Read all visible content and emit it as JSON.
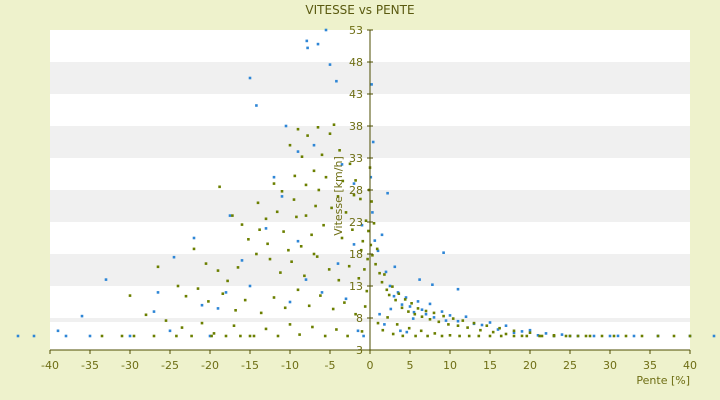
{
  "chart_data": {
    "type": "scatter",
    "title": "VITESSE vs PENTE",
    "xlabel": "Pente [%]",
    "ylabel": "Vitesse [km/h]",
    "xlim": [
      -40,
      40
    ],
    "ylim": [
      3,
      53
    ],
    "x_ticks": [
      -40,
      -35,
      -30,
      -25,
      -20,
      -15,
      -10,
      -5,
      0,
      5,
      10,
      15,
      20,
      25,
      30,
      35,
      40
    ],
    "y_ticks": [
      3,
      8,
      13,
      18,
      23,
      28,
      33,
      38,
      43,
      48,
      53
    ],
    "grid": "horizontal alternating bands",
    "legend": "none",
    "colors": {
      "background": "#eef2cc",
      "band_light": "#ffffff",
      "band_dark": "#f0f0f0",
      "series_a": "#2e86d6",
      "series_b": "#6b7f00",
      "axis": "#4d4d00"
    },
    "series": [
      {
        "color": "#2e86d6",
        "points": [
          [
            -5.5,
            53
          ],
          [
            -7.9,
            51.3
          ],
          [
            -6.5,
            50.8
          ],
          [
            -7.8,
            50.2
          ],
          [
            -5.0,
            47.6
          ],
          [
            -4.2,
            45.0
          ],
          [
            -15.0,
            45.5
          ],
          [
            -14.2,
            41.2
          ],
          [
            -9.0,
            34
          ],
          [
            -3.5,
            32
          ],
          [
            -2.0,
            29
          ],
          [
            -11.0,
            27
          ],
          [
            -17.5,
            24
          ],
          [
            -22.0,
            20.5
          ],
          [
            -24.5,
            17.5
          ],
          [
            -26.5,
            12
          ],
          [
            -33.0,
            14
          ],
          [
            -36.0,
            8.3
          ],
          [
            -39.0,
            6.0
          ],
          [
            -44.0,
            5.0
          ],
          [
            -27.0,
            9.0
          ],
          [
            -19.0,
            9.5
          ],
          [
            -15.0,
            13
          ],
          [
            -10.0,
            10.5
          ],
          [
            -8.0,
            14
          ],
          [
            -6.0,
            12
          ],
          [
            -4.0,
            16.5
          ],
          [
            -3.0,
            11.0
          ],
          [
            -2.0,
            19.5
          ],
          [
            -1.0,
            22.5
          ],
          [
            0.3,
            24.5
          ],
          [
            0.6,
            20.1
          ],
          [
            1.0,
            18.5
          ],
          [
            1.5,
            21.0
          ],
          [
            2.0,
            15.2
          ],
          [
            2.5,
            13.0
          ],
          [
            3.0,
            11.4
          ],
          [
            3.5,
            12.0
          ],
          [
            4.0,
            10.1
          ],
          [
            4.5,
            11.2
          ],
          [
            5.0,
            9.8
          ],
          [
            5.5,
            8.9
          ],
          [
            6.0,
            10.6
          ],
          [
            6.5,
            9.3
          ],
          [
            7.0,
            8.6
          ],
          [
            7.5,
            10.2
          ],
          [
            8.0,
            8.1
          ],
          [
            9.0,
            9.0
          ],
          [
            9.5,
            7.6
          ],
          [
            10.0,
            8.4
          ],
          [
            11.0,
            7.5
          ],
          [
            12.0,
            8.2
          ],
          [
            13.0,
            7.1
          ],
          [
            14.0,
            6.9
          ],
          [
            15.0,
            7.3
          ],
          [
            16.0,
            6.2
          ],
          [
            17.0,
            6.8
          ],
          [
            18.0,
            5.7
          ],
          [
            19.0,
            5.9
          ],
          [
            20.0,
            6.1
          ],
          [
            21.0,
            5.3
          ],
          [
            22.0,
            5.6
          ],
          [
            23.0,
            5.0
          ],
          [
            24.0,
            5.4
          ],
          [
            25.0,
            4.6
          ],
          [
            26.0,
            5.1
          ],
          [
            28.0,
            4.3
          ],
          [
            30.0,
            4.9
          ],
          [
            31.0,
            5.2
          ],
          [
            33.0,
            4.1
          ],
          [
            36.0,
            4.6
          ],
          [
            40.0,
            3.9
          ],
          [
            43.0,
            3.0
          ],
          [
            43.5,
            5.4
          ],
          [
            -12.0,
            30
          ],
          [
            -10.5,
            38
          ],
          [
            -7.0,
            35
          ],
          [
            -13.0,
            22
          ],
          [
            -9.0,
            20
          ],
          [
            -1.5,
            6.0
          ],
          [
            -0.8,
            4.6
          ],
          [
            0.2,
            44.5
          ],
          [
            0.4,
            35.5
          ],
          [
            0.1,
            30.0
          ],
          [
            2.2,
            27.5
          ],
          [
            3.1,
            16.0
          ],
          [
            6.2,
            14.0
          ],
          [
            7.8,
            13.2
          ],
          [
            9.2,
            18.2
          ],
          [
            11.0,
            12.5
          ],
          [
            -20.0,
            4.0
          ],
          [
            -25.0,
            6.0
          ],
          [
            -30.0,
            4.0
          ],
          [
            -35.0,
            3.0
          ],
          [
            -38.0,
            3.0
          ],
          [
            -42.0,
            3.0
          ],
          [
            -16.0,
            17.0
          ],
          [
            -18.0,
            12.0
          ],
          [
            -21.0,
            10.0
          ],
          [
            1.2,
            8.6
          ],
          [
            1.8,
            7.0
          ],
          [
            2.6,
            9.4
          ],
          [
            3.8,
            6.0
          ],
          [
            4.6,
            5.8
          ],
          [
            5.4,
            7.9
          ]
        ]
      },
      {
        "color": "#6b7f00",
        "points": [
          [
            -9.0,
            37.5
          ],
          [
            -7.8,
            36.5
          ],
          [
            -6.5,
            37.8
          ],
          [
            -5.0,
            36.8
          ],
          [
            -4.5,
            38.2
          ],
          [
            -10.0,
            35.0
          ],
          [
            -8.5,
            33.2
          ],
          [
            -7.0,
            31.0
          ],
          [
            -6.0,
            33.5
          ],
          [
            -5.5,
            30.0
          ],
          [
            -3.8,
            34.2
          ],
          [
            -2.5,
            32.1
          ],
          [
            -1.8,
            29.5
          ],
          [
            -12.0,
            29.0
          ],
          [
            -11.0,
            27.8
          ],
          [
            -9.5,
            26.5
          ],
          [
            -8.0,
            28.8
          ],
          [
            -6.8,
            25.5
          ],
          [
            -4.0,
            27.0
          ],
          [
            -3.0,
            24.5
          ],
          [
            -1.2,
            26.6
          ],
          [
            -0.5,
            23.2
          ],
          [
            -14.0,
            26.0
          ],
          [
            -13.0,
            23.5
          ],
          [
            -10.8,
            21.5
          ],
          [
            -9.2,
            23.8
          ],
          [
            -7.3,
            21.0
          ],
          [
            -5.8,
            22.5
          ],
          [
            -3.5,
            20.5
          ],
          [
            -2.2,
            21.8
          ],
          [
            -0.9,
            20.0
          ],
          [
            -18.8,
            28.5
          ],
          [
            -17.2,
            24.0
          ],
          [
            -16.0,
            22.6
          ],
          [
            -15.2,
            20.3
          ],
          [
            -22.0,
            18.8
          ],
          [
            -20.5,
            16.5
          ],
          [
            -19.0,
            15.4
          ],
          [
            -17.8,
            13.8
          ],
          [
            -16.5,
            15.9
          ],
          [
            -14.2,
            18.0
          ],
          [
            -12.5,
            17.2
          ],
          [
            -11.2,
            15.1
          ],
          [
            -9.8,
            16.8
          ],
          [
            -8.2,
            14.6
          ],
          [
            -6.6,
            17.6
          ],
          [
            -5.1,
            15.6
          ],
          [
            -3.9,
            13.9
          ],
          [
            -2.6,
            16.1
          ],
          [
            -1.4,
            14.2
          ],
          [
            -0.4,
            12.2
          ],
          [
            -26.5,
            16.0
          ],
          [
            -24.0,
            13.0
          ],
          [
            -23.0,
            11.4
          ],
          [
            -21.5,
            12.6
          ],
          [
            -20.2,
            10.6
          ],
          [
            -18.4,
            11.8
          ],
          [
            -16.8,
            9.2
          ],
          [
            -15.6,
            10.8
          ],
          [
            -13.6,
            8.8
          ],
          [
            -12.0,
            11.2
          ],
          [
            -10.6,
            9.6
          ],
          [
            -9.0,
            12.4
          ],
          [
            -7.6,
            9.9
          ],
          [
            -6.2,
            11.5
          ],
          [
            -4.6,
            9.4
          ],
          [
            -3.2,
            10.4
          ],
          [
            -1.8,
            8.6
          ],
          [
            -0.6,
            9.8
          ],
          [
            -30.0,
            11.5
          ],
          [
            -28.0,
            8.5
          ],
          [
            -25.5,
            7.6
          ],
          [
            -23.5,
            6.5
          ],
          [
            -21.0,
            7.2
          ],
          [
            -19.5,
            5.6
          ],
          [
            -17.0,
            6.8
          ],
          [
            -15.0,
            5.0
          ],
          [
            -13.0,
            6.3
          ],
          [
            -11.5,
            4.6
          ],
          [
            -10.0,
            7.0
          ],
          [
            -8.8,
            5.4
          ],
          [
            -7.2,
            6.6
          ],
          [
            -5.6,
            4.5
          ],
          [
            -4.2,
            6.2
          ],
          [
            -2.8,
            4.8
          ],
          [
            -1.0,
            5.9
          ],
          [
            -33.5,
            3.0
          ],
          [
            -31.0,
            3.0
          ],
          [
            -29.5,
            4.2
          ],
          [
            -27.0,
            3.4
          ],
          [
            -24.2,
            3.0
          ],
          [
            -22.3,
            3.9
          ],
          [
            -19.8,
            3.2
          ],
          [
            -18.0,
            3.0
          ],
          [
            -16.2,
            3.6
          ],
          [
            -14.5,
            3.0
          ],
          [
            -0.2,
            21.6
          ],
          [
            0.1,
            19.4
          ],
          [
            0.3,
            17.8
          ],
          [
            0.5,
            22.8
          ],
          [
            0.7,
            16.4
          ],
          [
            0.9,
            18.8
          ],
          [
            1.2,
            15.0
          ],
          [
            1.5,
            13.6
          ],
          [
            1.8,
            14.8
          ],
          [
            2.1,
            12.4
          ],
          [
            2.4,
            11.6
          ],
          [
            2.8,
            12.9
          ],
          [
            3.2,
            10.8
          ],
          [
            3.6,
            11.8
          ],
          [
            4.0,
            9.6
          ],
          [
            4.4,
            10.9
          ],
          [
            4.8,
            9.0
          ],
          [
            5.2,
            10.3
          ],
          [
            5.6,
            8.6
          ],
          [
            6.0,
            9.5
          ],
          [
            6.5,
            8.2
          ],
          [
            7.0,
            9.1
          ],
          [
            7.5,
            7.8
          ],
          [
            8.0,
            8.8
          ],
          [
            8.6,
            7.4
          ],
          [
            9.2,
            8.3
          ],
          [
            9.8,
            7.0
          ],
          [
            10.4,
            7.9
          ],
          [
            11.0,
            6.8
          ],
          [
            11.6,
            7.6
          ],
          [
            12.2,
            6.5
          ],
          [
            13.0,
            7.2
          ],
          [
            13.8,
            6.1
          ],
          [
            14.6,
            6.8
          ],
          [
            15.4,
            5.8
          ],
          [
            16.2,
            6.4
          ],
          [
            17.0,
            5.5
          ],
          [
            18.0,
            6.0
          ],
          [
            19.0,
            5.2
          ],
          [
            20.0,
            5.7
          ],
          [
            21.5,
            4.9
          ],
          [
            23.0,
            5.3
          ],
          [
            24.5,
            4.6
          ],
          [
            26.0,
            5.0
          ],
          [
            27.5,
            4.3
          ],
          [
            29.0,
            4.7
          ],
          [
            30.5,
            4.1
          ],
          [
            32.0,
            4.4
          ],
          [
            34.0,
            3.9
          ],
          [
            36.0,
            4.2
          ],
          [
            38.0,
            3.7
          ],
          [
            40.0,
            4.0
          ],
          [
            43.5,
            3.2
          ],
          [
            1.0,
            7.2
          ],
          [
            1.6,
            6.1
          ],
          [
            2.2,
            8.1
          ],
          [
            2.9,
            5.5
          ],
          [
            3.4,
            7.0
          ],
          [
            4.1,
            5.2
          ],
          [
            4.9,
            6.4
          ],
          [
            5.7,
            4.9
          ],
          [
            6.4,
            6.0
          ],
          [
            7.2,
            4.7
          ],
          [
            8.1,
            5.6
          ],
          [
            9.0,
            4.5
          ],
          [
            10.0,
            5.3
          ],
          [
            11.2,
            4.3
          ],
          [
            12.4,
            5.0
          ],
          [
            13.6,
            4.1
          ],
          [
            15.0,
            4.7
          ],
          [
            16.4,
            3.9
          ],
          [
            18.0,
            4.4
          ],
          [
            19.6,
            3.7
          ],
          [
            21.2,
            4.2
          ],
          [
            23.0,
            3.5
          ],
          [
            25.0,
            4.0
          ],
          [
            27.0,
            3.4
          ],
          [
            -0.1,
            28.0
          ],
          [
            0.0,
            31.5
          ],
          [
            0.2,
            26.2
          ],
          [
            -0.3,
            17.2
          ],
          [
            -0.7,
            15.6
          ],
          [
            -1.1,
            18.6
          ],
          [
            -13.8,
            21.8
          ],
          [
            -12.8,
            19.6
          ],
          [
            -11.6,
            24.6
          ],
          [
            -10.2,
            18.6
          ],
          [
            -8.6,
            19.2
          ],
          [
            -7.0,
            18.0
          ],
          [
            -9.4,
            30.2
          ],
          [
            -8.0,
            24.0
          ],
          [
            -6.4,
            28.0
          ],
          [
            -4.8,
            25.2
          ],
          [
            -3.4,
            29.4
          ],
          [
            -2.0,
            27.2
          ]
        ]
      }
    ]
  }
}
